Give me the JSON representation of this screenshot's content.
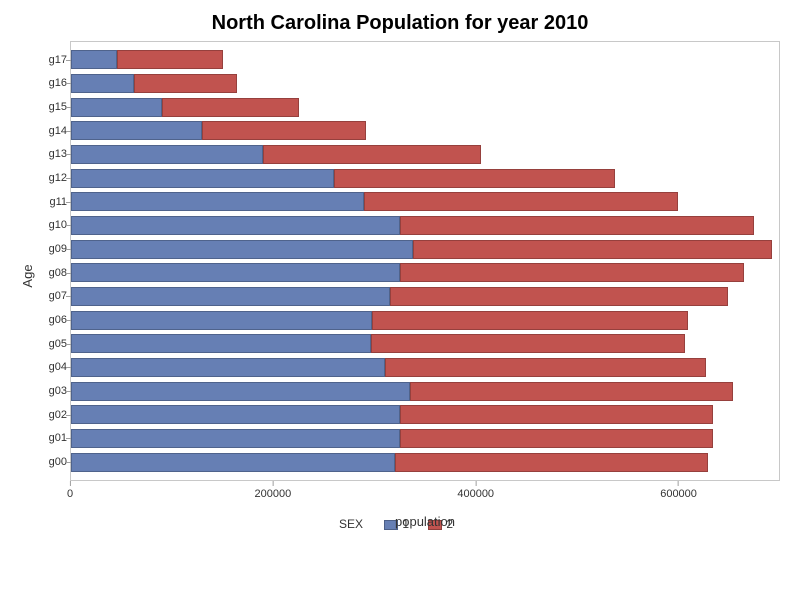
{
  "chart": {
    "type": "stacked-horizontal-bar",
    "title": "North Carolina Population for year 2010",
    "title_fontsize": 20,
    "title_fontweight": "bold",
    "background_color": "#ffffff",
    "plot_border_color": "#c8c8c8",
    "x_axis": {
      "label": "population",
      "label_fontsize": 13,
      "min": 0,
      "max": 700000,
      "ticks": [
        0,
        200000,
        400000,
        600000
      ],
      "tick_fontsize": 11
    },
    "y_axis": {
      "label": "Age",
      "label_fontsize": 13,
      "tick_fontsize": 11,
      "categories": [
        "g00",
        "g01",
        "g02",
        "g03",
        "g04",
        "g05",
        "g06",
        "g07",
        "g08",
        "g09",
        "g10",
        "g11",
        "g12",
        "g13",
        "g14",
        "g15",
        "g16",
        "g17"
      ]
    },
    "legend": {
      "title": "SEX",
      "items": [
        {
          "key": "1",
          "label": "1",
          "color": "#667fb4"
        },
        {
          "key": "2",
          "label": "2",
          "color": "#c1534f"
        }
      ],
      "fontsize": 12
    },
    "series_colors": {
      "1": "#667fb4",
      "2": "#c1534f"
    },
    "bar_border_color": "rgba(0,0,0,0.22)",
    "data": [
      {
        "category": "g00",
        "values": {
          "1": 320000,
          "2": 310000
        }
      },
      {
        "category": "g01",
        "values": {
          "1": 325000,
          "2": 310000
        }
      },
      {
        "category": "g02",
        "values": {
          "1": 325000,
          "2": 310000
        }
      },
      {
        "category": "g03",
        "values": {
          "1": 335000,
          "2": 320000
        }
      },
      {
        "category": "g04",
        "values": {
          "1": 310000,
          "2": 318000
        }
      },
      {
        "category": "g05",
        "values": {
          "1": 297000,
          "2": 310000
        }
      },
      {
        "category": "g06",
        "values": {
          "1": 298000,
          "2": 312000
        }
      },
      {
        "category": "g07",
        "values": {
          "1": 315000,
          "2": 335000
        }
      },
      {
        "category": "g08",
        "values": {
          "1": 325000,
          "2": 340000
        }
      },
      {
        "category": "g09",
        "values": {
          "1": 338000,
          "2": 355000
        }
      },
      {
        "category": "g10",
        "values": {
          "1": 325000,
          "2": 350000
        }
      },
      {
        "category": "g11",
        "values": {
          "1": 290000,
          "2": 310000
        }
      },
      {
        "category": "g12",
        "values": {
          "1": 260000,
          "2": 278000
        }
      },
      {
        "category": "g13",
        "values": {
          "1": 190000,
          "2": 215000
        }
      },
      {
        "category": "g14",
        "values": {
          "1": 130000,
          "2": 162000
        }
      },
      {
        "category": "g15",
        "values": {
          "1": 90000,
          "2": 135000
        }
      },
      {
        "category": "g16",
        "values": {
          "1": 62000,
          "2": 102000
        }
      },
      {
        "category": "g17",
        "values": {
          "1": 45000,
          "2": 105000
        }
      }
    ]
  }
}
